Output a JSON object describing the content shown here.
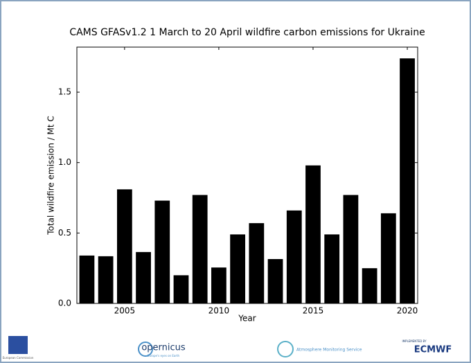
{
  "chart_data": {
    "type": "bar",
    "title": "CAMS GFASv1.2 1 March to 20 April wildfire carbon emissions for Ukraine",
    "x_label": "Year",
    "y_label": "Total wildfire emission / Mt C",
    "x": [
      2003,
      2004,
      2005,
      2006,
      2007,
      2008,
      2009,
      2010,
      2011,
      2012,
      2013,
      2014,
      2015,
      2016,
      2017,
      2018,
      2019,
      2020
    ],
    "values": [
      0.34,
      0.335,
      0.81,
      0.365,
      0.73,
      0.2,
      0.77,
      0.255,
      0.49,
      0.57,
      0.315,
      0.66,
      0.98,
      0.49,
      0.77,
      0.25,
      0.64,
      1.74
    ],
    "color": "#000000",
    "xlim": [
      2002.47,
      2020.55
    ],
    "xticks": [
      2005,
      2010,
      2015,
      2020
    ],
    "ylim": [
      0,
      1.82
    ],
    "yticks": [
      {
        "value": 0,
        "label": "0.0"
      },
      0.5,
      {
        "value": 1,
        "label": "1.0"
      },
      1.5
    ]
  },
  "footer": {
    "logos": [
      "European Commission",
      "opernicus",
      "Europe's eyes on Earth",
      "Atmosphere Monitoring Service",
      "IMPLEMENTED BY",
      "ECMWF"
    ]
  }
}
